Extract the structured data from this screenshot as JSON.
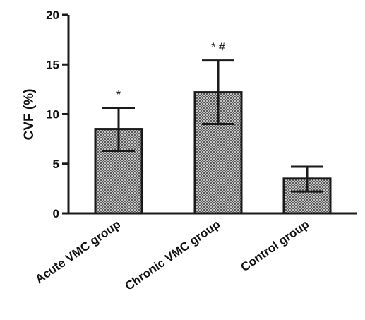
{
  "chart_data": {
    "type": "bar",
    "title": "",
    "xlabel": "",
    "ylabel": "CVF (%)",
    "ylim": [
      0,
      20
    ],
    "yticks": [
      0,
      5,
      10,
      15,
      20
    ],
    "grid": false,
    "categories": [
      "Acute VMC group",
      "Chronic VMC group",
      "Control group"
    ],
    "values": [
      8.5,
      12.2,
      3.5
    ],
    "error_upper": [
      10.6,
      15.4,
      4.7
    ],
    "error_lower": [
      6.3,
      9.0,
      2.2
    ],
    "annotations": [
      "*",
      "* #",
      ""
    ],
    "bar_fill": "#9a9a9a",
    "stroke_color": "#1a1a1a"
  }
}
